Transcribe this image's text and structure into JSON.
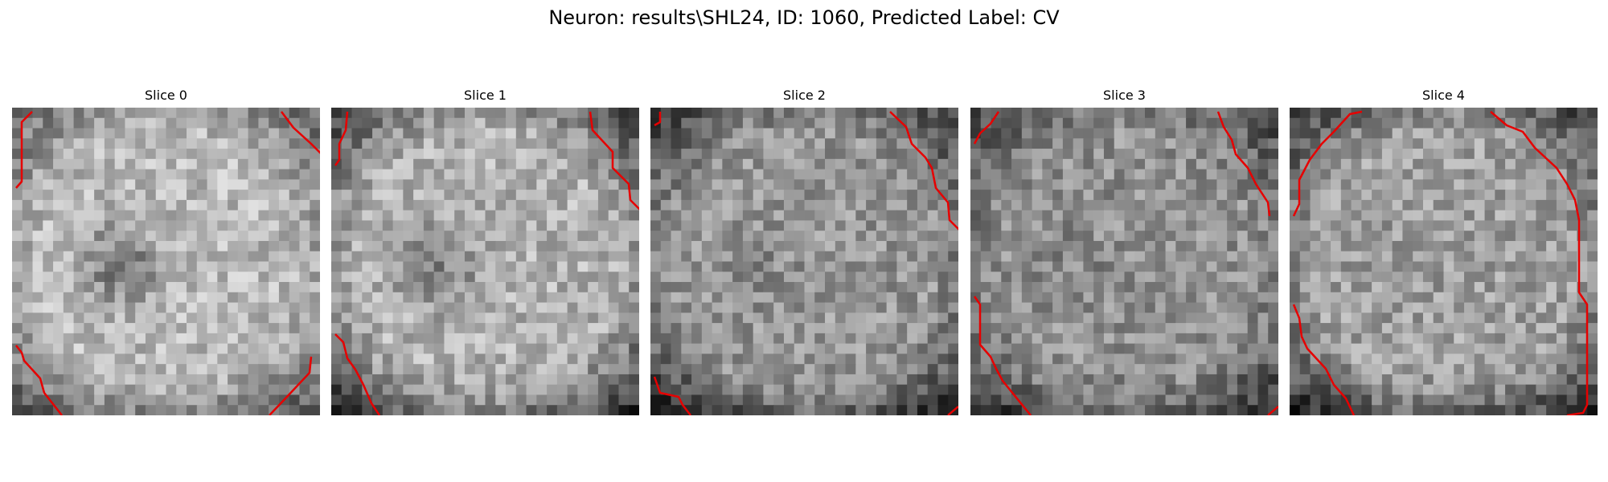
{
  "figure": {
    "title": "Neuron: results\\SHL24, ID: 1060, Predicted Label: CV"
  },
  "panels": [
    {
      "title": "Slice 0",
      "seed": 11,
      "base": 185,
      "center_dark": 60,
      "edge_dark": 70,
      "contour_color": "#e60000"
    },
    {
      "title": "Slice 1",
      "seed": 23,
      "base": 178,
      "center_dark": 45,
      "edge_dark": 95,
      "contour_color": "#e60000"
    },
    {
      "title": "Slice 2",
      "seed": 37,
      "base": 150,
      "center_dark": 10,
      "edge_dark": 80,
      "contour_color": "#e60000"
    },
    {
      "title": "Slice 3",
      "seed": 51,
      "base": 145,
      "center_dark": 10,
      "edge_dark": 70,
      "contour_color": "#e60000"
    },
    {
      "title": "Slice 4",
      "seed": 67,
      "base": 160,
      "center_dark": 5,
      "edge_dark": 85,
      "contour_color": "#e60000"
    }
  ]
}
